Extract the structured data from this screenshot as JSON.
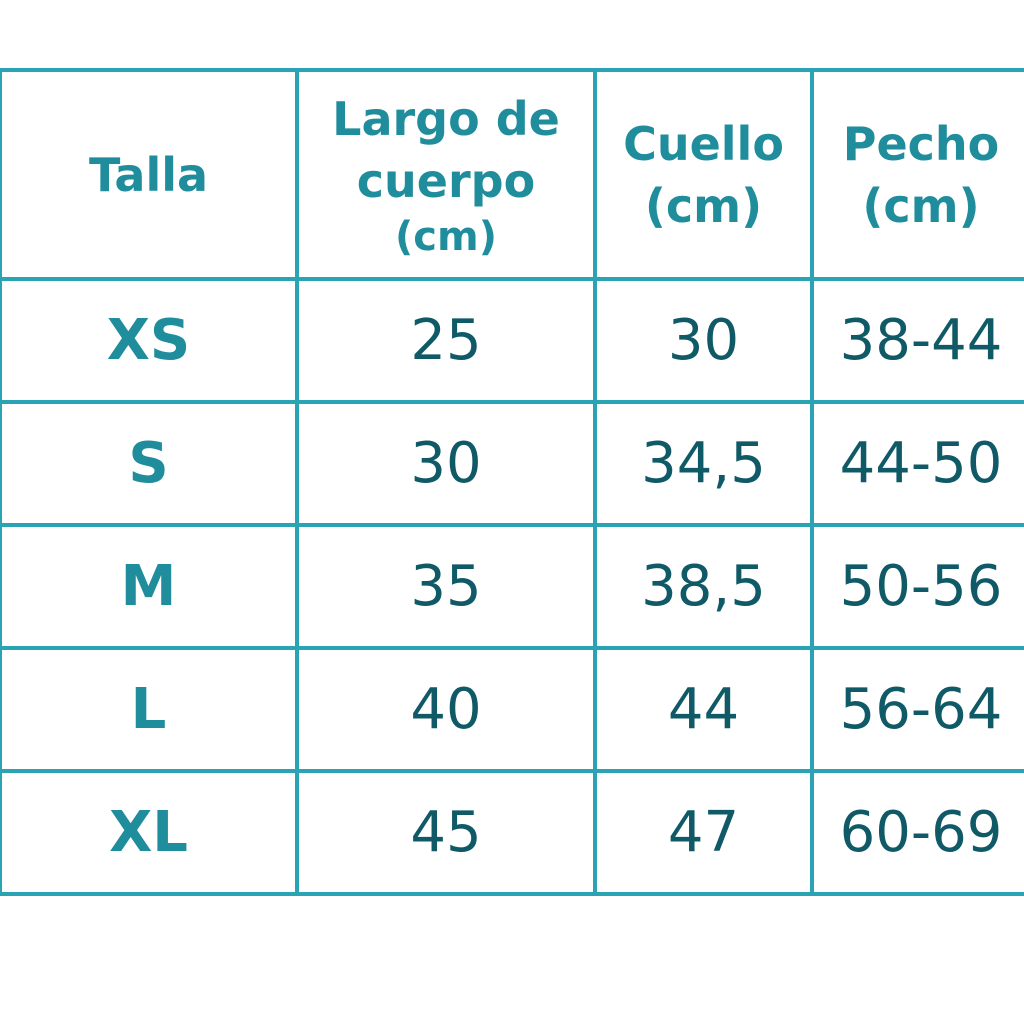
{
  "colors": {
    "border": "#2aa3b5",
    "header_text": "#1f8d9c",
    "value_text": "#0f5a66"
  },
  "headers": [
    {
      "label": "Talla",
      "unit": ""
    },
    {
      "label": "Largo de cuerpo",
      "unit": "(cm)"
    },
    {
      "label": "Cuello",
      "unit": "(cm)"
    },
    {
      "label": "Pecho",
      "unit": "(cm)"
    }
  ],
  "rows": [
    [
      "XS",
      "25",
      "30",
      "38-44"
    ],
    [
      "S",
      "30",
      "34,5",
      "44-50"
    ],
    [
      "M",
      "35",
      "38,5",
      "50-56"
    ],
    [
      "L",
      "40",
      "44",
      "56-64"
    ],
    [
      "XL",
      "45",
      "47",
      "60-69"
    ]
  ]
}
